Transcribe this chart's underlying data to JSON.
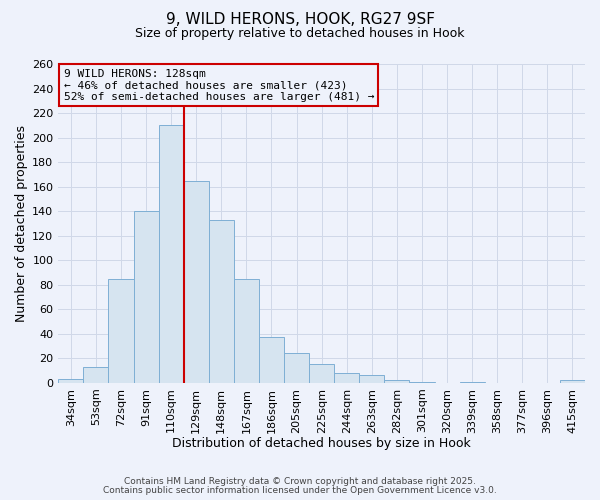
{
  "title": "9, WILD HERONS, HOOK, RG27 9SF",
  "subtitle": "Size of property relative to detached houses in Hook",
  "xlabel": "Distribution of detached houses by size in Hook",
  "ylabel": "Number of detached properties",
  "bar_color": "#d6e4f0",
  "bar_edge_color": "#7eafd4",
  "categories": [
    "34sqm",
    "53sqm",
    "72sqm",
    "91sqm",
    "110sqm",
    "129sqm",
    "148sqm",
    "167sqm",
    "186sqm",
    "205sqm",
    "225sqm",
    "244sqm",
    "263sqm",
    "282sqm",
    "301sqm",
    "320sqm",
    "339sqm",
    "358sqm",
    "377sqm",
    "396sqm",
    "415sqm"
  ],
  "values": [
    3,
    13,
    85,
    140,
    210,
    165,
    133,
    85,
    37,
    24,
    15,
    8,
    6,
    2,
    1,
    0,
    1,
    0,
    0,
    0,
    2
  ],
  "ylim": [
    0,
    260
  ],
  "yticks": [
    0,
    20,
    40,
    60,
    80,
    100,
    120,
    140,
    160,
    180,
    200,
    220,
    240,
    260
  ],
  "vline_index": 4.5,
  "annotation_title": "9 WILD HERONS: 128sqm",
  "annotation_line1": "← 46% of detached houses are smaller (423)",
  "annotation_line2": "52% of semi-detached houses are larger (481) →",
  "footer_line1": "Contains HM Land Registry data © Crown copyright and database right 2025.",
  "footer_line2": "Contains public sector information licensed under the Open Government Licence v3.0.",
  "bg_color": "#eef2fb",
  "plot_bg_color": "#eef2fb",
  "grid_color": "#d0d8e8",
  "annotation_box_color": "#eef2fb",
  "annotation_box_edge": "#cc0000",
  "vline_color": "#cc0000",
  "title_fontsize": 11,
  "subtitle_fontsize": 9,
  "xlabel_fontsize": 9,
  "ylabel_fontsize": 9,
  "tick_fontsize": 8,
  "annotation_fontsize": 8,
  "footer_fontsize": 6.5
}
